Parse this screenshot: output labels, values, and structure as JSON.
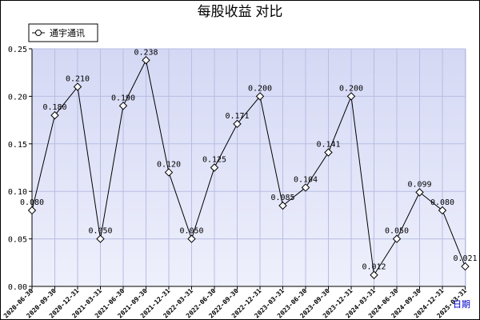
{
  "chart_data": {
    "type": "line",
    "title": "每股收益  对比",
    "xlabel": "日期",
    "ylabel": "",
    "ylim": [
      0,
      0.25
    ],
    "yticks": [
      "0.00",
      "0.05",
      "0.10",
      "0.15",
      "0.20",
      "0.25"
    ],
    "grid": true,
    "legend_position": "top-left",
    "categories": [
      "2020-06-30",
      "2020-09-30",
      "2020-12-31",
      "2021-03-31",
      "2021-06-30",
      "2021-09-30",
      "2021-12-31",
      "2022-03-31",
      "2022-06-30",
      "2022-09-30",
      "2022-12-31",
      "2023-03-31",
      "2023-06-30",
      "2023-09-30",
      "2023-12-31",
      "2024-03-31",
      "2024-06-30",
      "2024-09-30",
      "2024-12-31",
      "2025-03-31"
    ],
    "series": [
      {
        "name": "通宇通讯",
        "values": [
          0.08,
          0.18,
          0.21,
          0.05,
          0.19,
          0.238,
          0.12,
          0.05,
          0.125,
          0.171,
          0.2,
          0.085,
          0.104,
          0.141,
          0.2,
          0.012,
          0.05,
          0.099,
          0.08,
          0.021
        ],
        "labels": [
          "0.080",
          "0.180",
          "0.210",
          "0.050",
          "0.190",
          "0.238",
          "0.120",
          "0.050",
          "0.125",
          "0.171",
          "0.200",
          "0.085",
          "0.104",
          "0.141",
          "0.200",
          "0.012",
          "0.050",
          "0.099",
          "0.080",
          "0.021"
        ]
      }
    ]
  },
  "colors": {
    "plot_bg_top": "#d4d8f4",
    "plot_bg_bottom": "#eef0fc",
    "grid": "#b8bde3",
    "line": "#000000",
    "marker_fill": "#ffffff",
    "xaxis_label": "#0000cc"
  },
  "legend": {
    "marker_icon": "circle-marker-icon"
  }
}
